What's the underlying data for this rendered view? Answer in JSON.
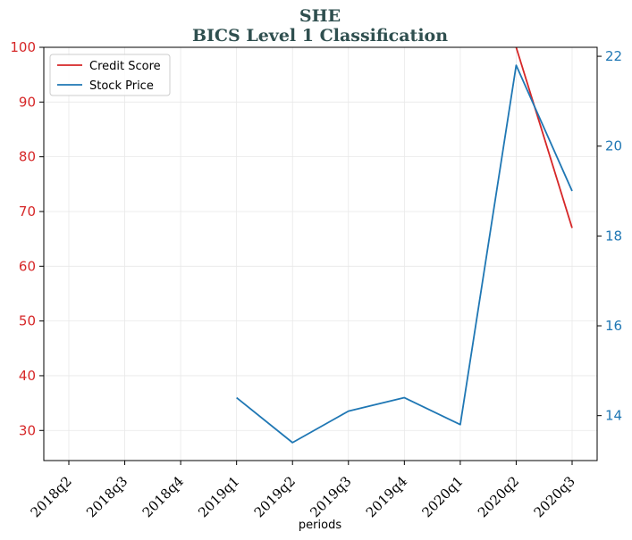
{
  "chart_data": {
    "type": "line",
    "title": "SHE",
    "subtitle": "BICS Level 1 Classification",
    "xlabel": "periods",
    "categories": [
      "2018q2",
      "2018q3",
      "2018q4",
      "2019q1",
      "2019q2",
      "2019q3",
      "2019q4",
      "2020q1",
      "2020q2",
      "2020q3"
    ],
    "series": [
      {
        "name": "Credit Score",
        "axis": "left",
        "color": "#d62728",
        "values": [
          null,
          null,
          null,
          null,
          null,
          null,
          null,
          null,
          100,
          67
        ]
      },
      {
        "name": "Stock Price",
        "axis": "right",
        "color": "#1f77b4",
        "values": [
          null,
          null,
          null,
          14.4,
          13.4,
          14.1,
          14.4,
          13.8,
          21.8,
          19.0
        ]
      }
    ],
    "y_left": {
      "ylim": [
        24.5,
        100
      ],
      "ticks": [
        30,
        40,
        50,
        60,
        70,
        80,
        90,
        100
      ],
      "color": "#d62728"
    },
    "y_right": {
      "ylim": [
        13.0,
        22.2
      ],
      "ticks": [
        14,
        16,
        18,
        20,
        22
      ],
      "color": "#1f77b4"
    },
    "grid": true,
    "legend_position": "top-left",
    "title_color": "#2f4f4f"
  }
}
